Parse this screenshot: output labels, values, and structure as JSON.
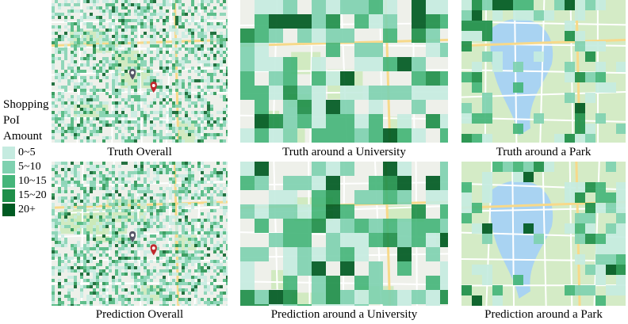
{
  "legend": {
    "title_lines": [
      "Shopping",
      "PoI",
      "Amount"
    ],
    "items": [
      {
        "label": "0~5",
        "color": "#c5ebe0"
      },
      {
        "label": "5~10",
        "color": "#7fd1b0"
      },
      {
        "label": "10~15",
        "color": "#45b57a"
      },
      {
        "label": "15~20",
        "color": "#1f8f4a"
      },
      {
        "label": "20+",
        "color": "#005a22"
      }
    ]
  },
  "panels": [
    {
      "id": "truth-overall",
      "caption": "Truth Overall",
      "view": "overall",
      "pins": true,
      "seed": 11
    },
    {
      "id": "truth-university",
      "caption": "Truth around a University",
      "view": "university",
      "pins": false,
      "seed": 23
    },
    {
      "id": "truth-park",
      "caption": "Truth around a Park",
      "view": "park",
      "pins": false,
      "seed": 37
    },
    {
      "id": "prediction-overall",
      "caption": "Prediction Overall",
      "view": "overall",
      "pins": true,
      "seed": 13
    },
    {
      "id": "prediction-university",
      "caption": "Prediction around a University",
      "view": "university",
      "pins": false,
      "seed": 29
    },
    {
      "id": "prediction-park",
      "caption": "Prediction around a Park",
      "view": "park",
      "pins": false,
      "seed": 41
    }
  ],
  "map_colors": {
    "land": "#eef0ea",
    "park": "#c9e8b7",
    "water": "#a9d3f2",
    "road_major": "#f7d98a",
    "road_minor": "#ffffff",
    "pin_red": "#c0282d",
    "pin_dark": "#555566"
  }
}
